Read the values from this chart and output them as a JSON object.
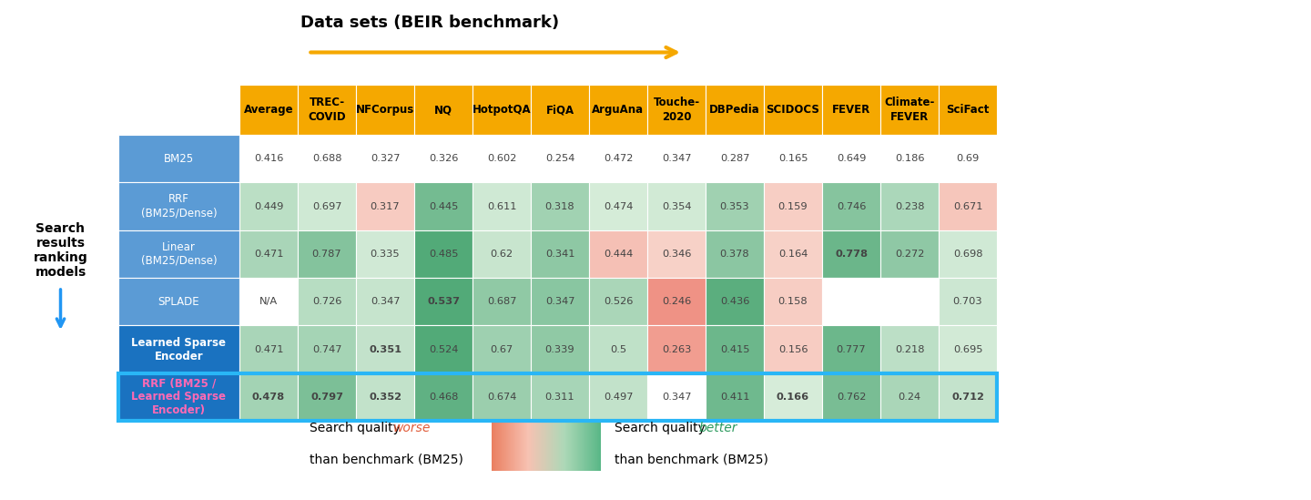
{
  "columns": [
    "Average",
    "TREC-\nCOVID",
    "NFCorpus",
    "NQ",
    "HotpotQA",
    "FiQA",
    "ArguAna",
    "Touche-\n2020",
    "DBPedia",
    "SCIDOCS",
    "FEVER",
    "Climate-\nFEVER",
    "SciFact"
  ],
  "rows": [
    "BM25",
    "RRF\n(BM25/Dense)",
    "Linear\n(BM25/Dense)",
    "SPLADE",
    "Learned Sparse\nEncoder",
    "RRF (BM25 /\nLearned Sparse\nEncoder)"
  ],
  "values": [
    [
      0.416,
      0.688,
      0.327,
      0.326,
      0.602,
      0.254,
      0.472,
      0.347,
      0.287,
      0.165,
      0.649,
      0.186,
      0.69
    ],
    [
      0.449,
      0.697,
      0.317,
      0.445,
      0.611,
      0.318,
      0.474,
      0.354,
      0.353,
      0.159,
      0.746,
      0.238,
      0.671
    ],
    [
      0.471,
      0.787,
      0.335,
      0.485,
      0.62,
      0.341,
      0.444,
      0.346,
      0.378,
      0.164,
      0.778,
      0.272,
      0.698
    ],
    [
      null,
      0.726,
      0.347,
      0.537,
      0.687,
      0.347,
      0.526,
      0.246,
      0.436,
      0.158,
      null,
      null,
      0.703
    ],
    [
      0.471,
      0.747,
      0.351,
      0.524,
      0.67,
      0.339,
      0.5,
      0.263,
      0.415,
      0.156,
      0.777,
      0.218,
      0.695
    ],
    [
      0.478,
      0.797,
      0.352,
      0.468,
      0.674,
      0.311,
      0.497,
      0.347,
      0.411,
      0.166,
      0.762,
      0.24,
      0.712
    ]
  ],
  "bm25_values": [
    0.416,
    0.688,
    0.327,
    0.326,
    0.602,
    0.254,
    0.472,
    0.347,
    0.287,
    0.165,
    0.649,
    0.186,
    0.69
  ],
  "bold_cells": [
    [
      false,
      false,
      false,
      false,
      false,
      false,
      false,
      false,
      false,
      false,
      false,
      false,
      false
    ],
    [
      false,
      false,
      false,
      false,
      false,
      false,
      false,
      false,
      false,
      false,
      false,
      false,
      false
    ],
    [
      false,
      false,
      false,
      false,
      false,
      false,
      false,
      false,
      false,
      false,
      true,
      false,
      false
    ],
    [
      false,
      false,
      false,
      true,
      false,
      false,
      false,
      false,
      false,
      false,
      false,
      false,
      false
    ],
    [
      false,
      false,
      true,
      false,
      false,
      false,
      false,
      false,
      false,
      false,
      false,
      false,
      false
    ],
    [
      true,
      true,
      true,
      false,
      false,
      false,
      false,
      false,
      false,
      true,
      false,
      false,
      true
    ]
  ],
  "display_values": [
    [
      "0.416",
      "0.688",
      "0.327",
      "0.326",
      "0.602",
      "0.254",
      "0.472",
      "0.347",
      "0.287",
      "0.165",
      "0.649",
      "0.186",
      "0.69"
    ],
    [
      "0.449",
      "0.697",
      "0.317",
      "0.445",
      "0.611",
      "0.318",
      "0.474",
      "0.354",
      "0.353",
      "0.159",
      "0.746",
      "0.238",
      "0.671"
    ],
    [
      "0.471",
      "0.787",
      "0.335",
      "0.485",
      "0.62",
      "0.341",
      "0.444",
      "0.346",
      "0.378",
      "0.164",
      "0.778",
      "0.272",
      "0.698"
    ],
    [
      "N/A",
      "0.726",
      "0.347",
      "0.537",
      "0.687",
      "0.347",
      "0.526",
      "0.246",
      "0.436",
      "0.158",
      "",
      "",
      "0.703"
    ],
    [
      "0.471",
      "0.747",
      "0.351",
      "0.524",
      "0.67",
      "0.339",
      "0.5",
      "0.263",
      "0.415",
      "0.156",
      "0.777",
      "0.218",
      "0.695"
    ],
    [
      "0.478",
      "0.797",
      "0.352",
      "0.468",
      "0.674",
      "0.311",
      "0.497",
      "0.347",
      "0.411",
      "0.166",
      "0.762",
      "0.24",
      "0.712"
    ]
  ],
  "header_bg": "#F5A800",
  "header_fg": "#000000",
  "row_label_bg_light": "#5B9BD5",
  "row_label_bg_dark": "#1A72C0",
  "row_label_bg_last": "#1A72C0",
  "row_text_normal": "#ffffff",
  "row_text_last": "#FF69B4",
  "title": "Data sets (BEIR benchmark)",
  "title_arrow_color": "#F5A800",
  "left_label_text": "Search\nresults\nranking\nmodels",
  "left_label_arrow_color": "#2196F3",
  "left_label_text_color": "#000000"
}
